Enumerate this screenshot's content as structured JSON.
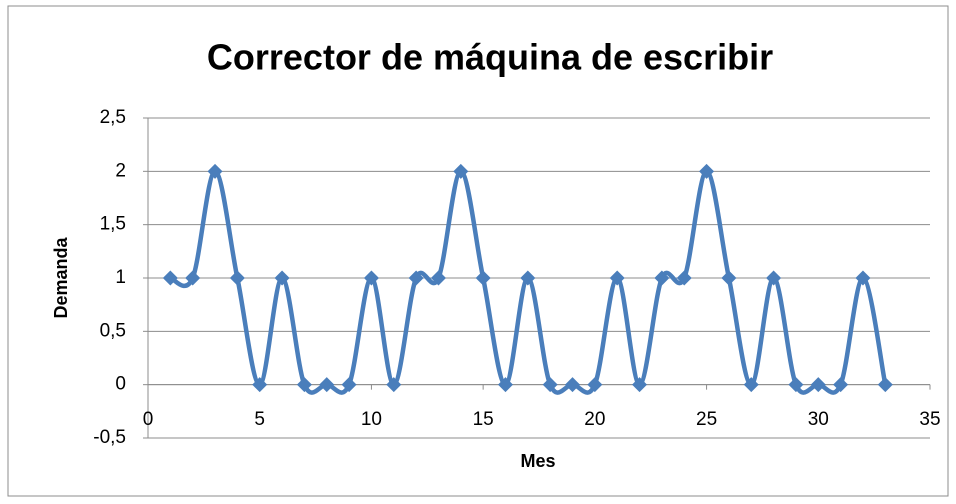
{
  "chart_data": {
    "type": "scatter-smooth",
    "title": "Corrector de máquina de escribir",
    "x_label": "Mes",
    "y_label": "Demanda",
    "x": [
      1,
      2,
      3,
      4,
      5,
      6,
      7,
      8,
      9,
      10,
      11,
      12,
      13,
      14,
      15,
      16,
      17,
      18,
      19,
      20,
      21,
      22,
      23,
      24,
      25,
      26,
      27,
      28,
      29,
      30,
      31,
      32,
      33
    ],
    "values": [
      1,
      1,
      2,
      1,
      0,
      1,
      0,
      0,
      0,
      1,
      0,
      1,
      1,
      2,
      1,
      0,
      1,
      0,
      0,
      0,
      1,
      0,
      1,
      1,
      2,
      1,
      0,
      1,
      0,
      0,
      0,
      1,
      0
    ],
    "color": "#4a7ebb",
    "xlim": [
      0,
      35
    ],
    "xticks": [
      0,
      5,
      10,
      15,
      20,
      25,
      30,
      35
    ],
    "ylim": [
      -0.5,
      2.5
    ],
    "yticks": [
      {
        "value": -0.5,
        "label": "-0,5"
      },
      0,
      {
        "value": 0.5,
        "label": "0,5"
      },
      1,
      {
        "value": 1.5,
        "label": "1,5"
      },
      2,
      {
        "value": 2.5,
        "label": "2,5"
      }
    ],
    "grid": true
  }
}
